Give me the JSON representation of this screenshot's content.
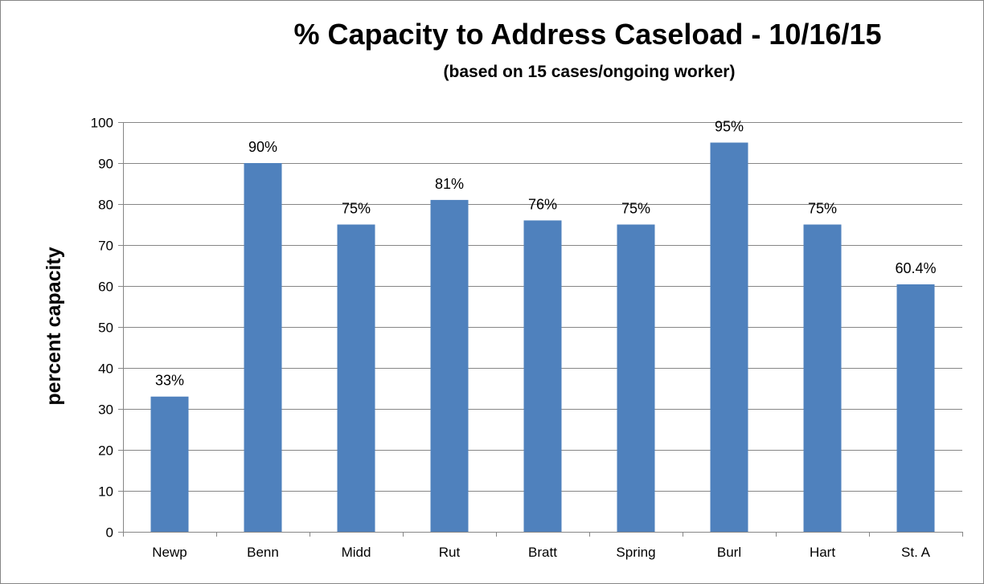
{
  "chart_data": {
    "type": "bar",
    "title": "% Capacity to Address Caseload - 10/16/15",
    "subtitle": "(based on 15 cases/ongoing  worker)",
    "xlabel": "",
    "ylabel": "percent capacity",
    "categories": [
      "Newp",
      "Benn",
      "Midd",
      "Rut",
      "Bratt",
      "Spring",
      "Burl",
      "Hart",
      "St. A"
    ],
    "values": [
      33,
      90,
      75,
      81,
      76,
      75,
      95,
      75,
      60.4
    ],
    "data_labels": [
      "33%",
      "90%",
      "75%",
      "81%",
      "76%",
      "75%",
      "95%",
      "75%",
      "60.4%"
    ],
    "ylim": [
      0,
      100
    ],
    "yticks": [
      0,
      10,
      20,
      30,
      40,
      50,
      60,
      70,
      80,
      90,
      100
    ],
    "grid": true,
    "legend": "none",
    "colors": {
      "bar": "#4F81BD",
      "grid": "#868686",
      "axis": "#868686"
    }
  }
}
